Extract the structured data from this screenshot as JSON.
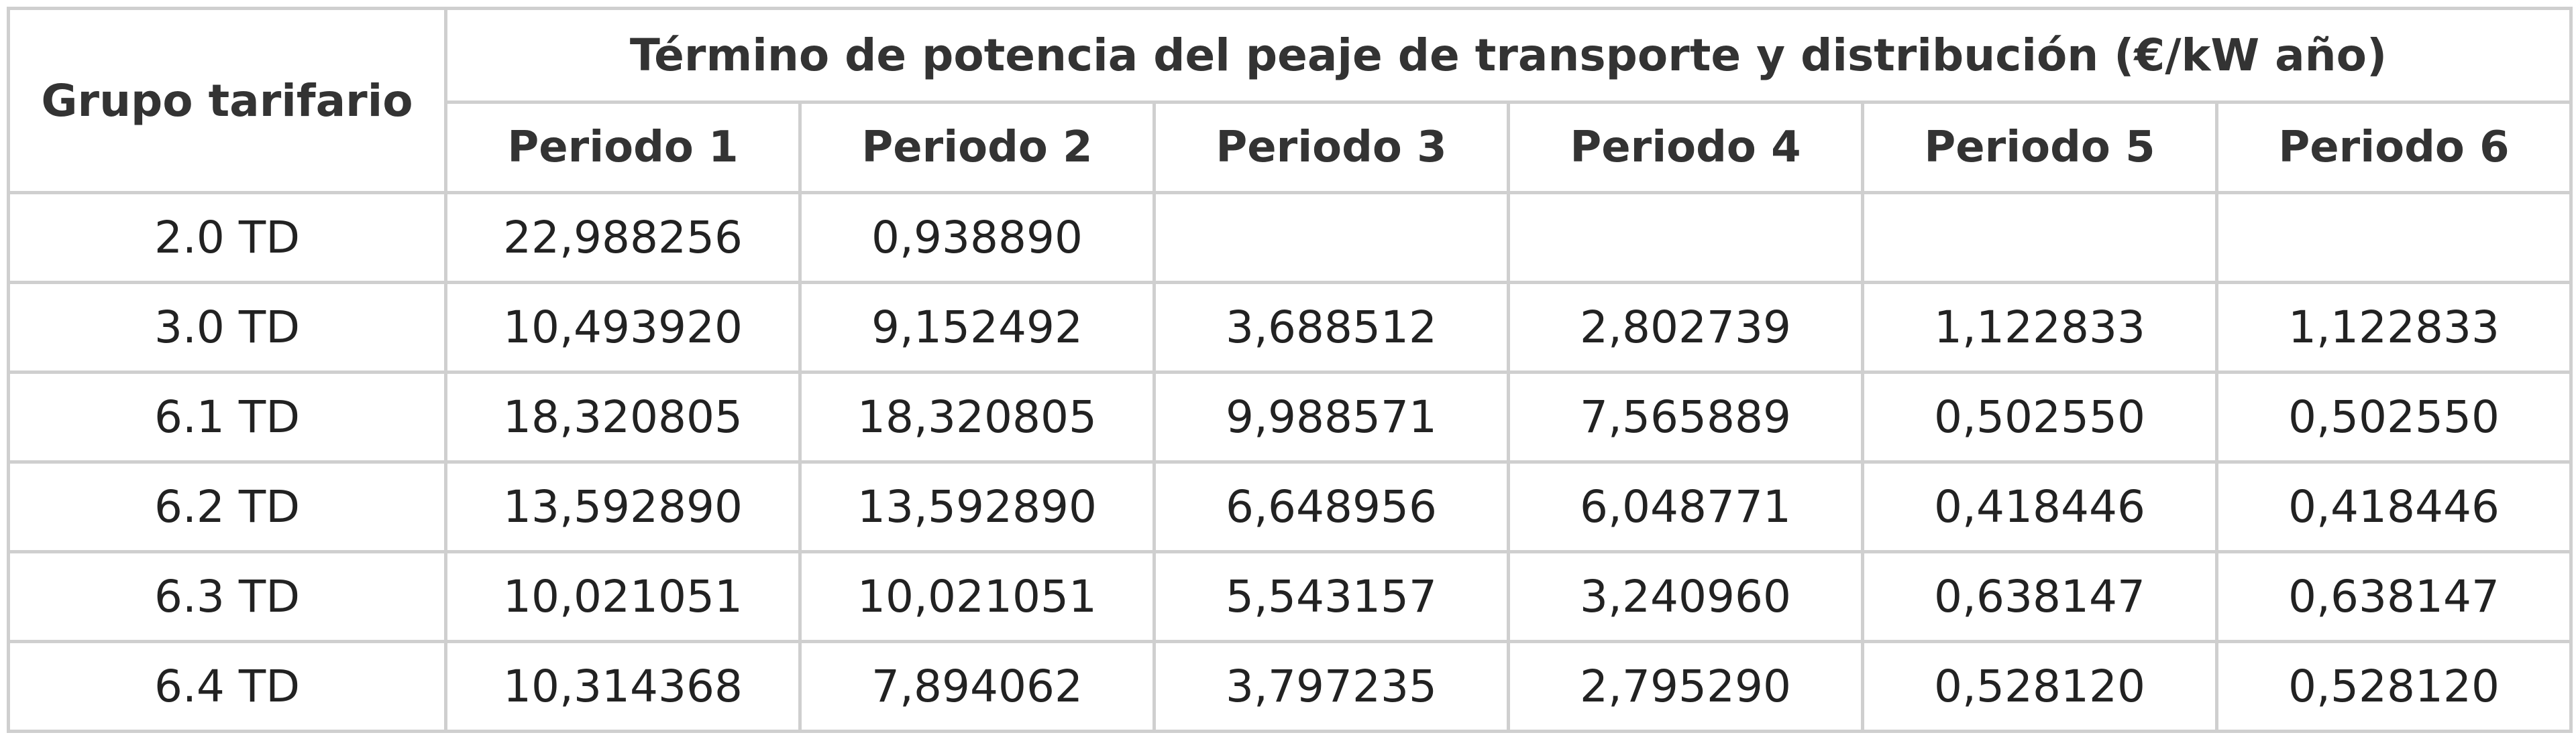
{
  "table": {
    "group_header": "Grupo tarifario",
    "span_header": "Término de potencia del peaje de transporte y distribución (€/kW año)",
    "period_headers": [
      "Periodo 1",
      "Periodo 2",
      "Periodo 3",
      "Periodo 4",
      "Periodo 5",
      "Periodo 6"
    ],
    "rows": [
      {
        "group": "2.0 TD",
        "values": [
          "22,988256",
          "0,938890",
          "",
          "",
          "",
          ""
        ]
      },
      {
        "group": "3.0 TD",
        "values": [
          "10,493920",
          "9,152492",
          "3,688512",
          "2,802739",
          "1,122833",
          "1,122833"
        ]
      },
      {
        "group": "6.1 TD",
        "values": [
          "18,320805",
          "18,320805",
          "9,988571",
          "7,565889",
          "0,502550",
          "0,502550"
        ]
      },
      {
        "group": "6.2 TD",
        "values": [
          "13,592890",
          "13,592890",
          "6,648956",
          "6,048771",
          "0,418446",
          "0,418446"
        ]
      },
      {
        "group": "6.3 TD",
        "values": [
          "10,021051",
          "10,021051",
          "5,543157",
          "3,240960",
          "0,638147",
          "0,638147"
        ]
      },
      {
        "group": "6.4 TD",
        "values": [
          "10,314368",
          "7,894062",
          "3,797235",
          "2,795290",
          "0,528120",
          "0,528120"
        ]
      }
    ]
  }
}
